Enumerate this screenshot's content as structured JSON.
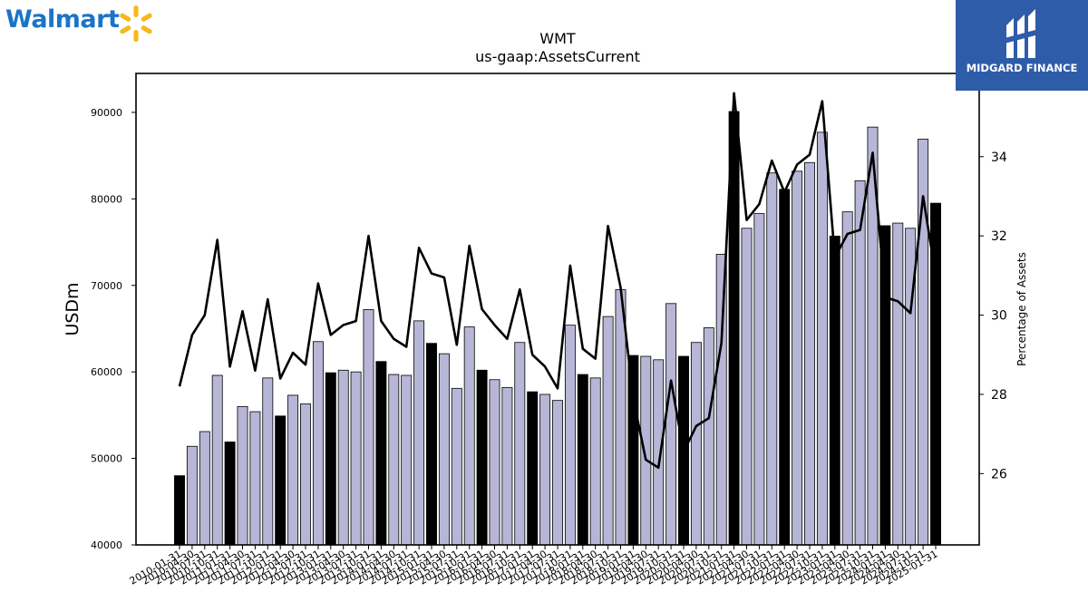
{
  "branding": {
    "left_logo_text": "Walmart",
    "right_logo_text": "MIDGARD FINANCE",
    "spark_icon": "spark-icon",
    "right_icon": "midgard-emblem-icon"
  },
  "chart_data": {
    "type": "bar",
    "title": "WMT",
    "subtitle": "us-gaap:AssetsCurrent",
    "ylabel": "USDm",
    "y2label": "Percentage of Assets",
    "ylim": [
      40000,
      94500
    ],
    "y2lim": [
      24.2,
      36.1
    ],
    "yticks": [
      40000,
      50000,
      60000,
      70000,
      80000,
      90000
    ],
    "y2ticks": [
      26,
      28,
      30,
      32,
      34
    ],
    "grid": false,
    "colors": {
      "annual_bar": "#000000",
      "quarter_bar": "#b8b6d6",
      "line": "#000000"
    },
    "categories": [
      "2010-01-31",
      "2010-04-30",
      "2010-07-31",
      "2010-10-31",
      "2011-01-31",
      "2011-04-30",
      "2011-07-31",
      "2011-10-31",
      "2012-01-31",
      "2012-04-30",
      "2012-07-31",
      "2012-10-31",
      "2013-01-31",
      "2013-04-30",
      "2013-07-31",
      "2013-10-31",
      "2014-01-31",
      "2014-04-30",
      "2014-07-31",
      "2014-10-31",
      "2015-01-31",
      "2015-04-30",
      "2015-07-31",
      "2015-10-31",
      "2016-01-31",
      "2016-04-30",
      "2016-07-31",
      "2016-10-31",
      "2017-01-31",
      "2017-04-30",
      "2017-07-31",
      "2017-10-31",
      "2018-01-31",
      "2018-04-30",
      "2018-07-31",
      "2018-10-31",
      "2019-01-31",
      "2019-04-30",
      "2019-07-31",
      "2019-10-31",
      "2020-01-31",
      "2020-04-30",
      "2020-07-31",
      "2020-10-31",
      "2021-01-31",
      "2021-04-30",
      "2021-07-31",
      "2021-10-31",
      "2022-01-31",
      "2022-04-30",
      "2022-07-31",
      "2022-10-31",
      "2023-01-31",
      "2023-04-30",
      "2023-07-31",
      "2023-10-31",
      "2024-01-31",
      "2024-04-30",
      "2024-07-31",
      "2024-10-31",
      "2025-01-31"
    ],
    "annual_flags": [
      1,
      0,
      0,
      0,
      1,
      0,
      0,
      0,
      1,
      0,
      0,
      0,
      1,
      0,
      0,
      0,
      1,
      0,
      0,
      0,
      1,
      0,
      0,
      0,
      1,
      0,
      0,
      0,
      1,
      0,
      0,
      0,
      1,
      0,
      0,
      0,
      1,
      0,
      0,
      0,
      1,
      0,
      0,
      0,
      1,
      0,
      0,
      0,
      1,
      0,
      0,
      0,
      1,
      0,
      0,
      0,
      1,
      0,
      0,
      0,
      1
    ],
    "series": [
      {
        "name": "AssetsCurrent",
        "axis": "left",
        "kind": "bar",
        "values": [
          48000,
          51400,
          53100,
          59600,
          51900,
          56000,
          55400,
          59300,
          54900,
          57300,
          56300,
          63500,
          59900,
          60200,
          60000,
          67200,
          61200,
          59700,
          59600,
          65900,
          63300,
          62100,
          58100,
          65200,
          60200,
          59100,
          58200,
          63400,
          57700,
          57400,
          56700,
          65400,
          59700,
          59300,
          66400,
          69500,
          61900,
          61800,
          61400,
          67900,
          61800,
          63400,
          65100,
          73600,
          90100,
          76600,
          78300,
          83000,
          81100,
          83200,
          84200,
          87700,
          75700,
          78500,
          82100,
          88300,
          76900,
          77200,
          76600,
          86900,
          79500
        ]
      },
      {
        "name": "Percentage of Assets",
        "axis": "right",
        "kind": "line",
        "values": [
          28.2,
          29.5,
          30.0,
          31.9,
          28.7,
          30.1,
          28.6,
          30.4,
          28.4,
          29.05,
          28.75,
          30.8,
          29.5,
          29.75,
          29.85,
          32.0,
          29.85,
          29.4,
          29.2,
          31.7,
          31.05,
          30.95,
          29.25,
          31.75,
          30.15,
          29.75,
          29.4,
          30.65,
          29.0,
          28.7,
          28.15,
          31.25,
          29.15,
          28.9,
          32.25,
          30.7,
          27.9,
          26.35,
          26.15,
          28.35,
          26.55,
          27.2,
          27.4,
          29.3,
          35.6,
          32.4,
          32.8,
          33.9,
          33.1,
          33.8,
          34.05,
          35.4,
          31.45,
          32.05,
          32.15,
          34.1,
          30.45,
          30.35,
          30.05,
          33.0,
          31.0
        ]
      }
    ]
  }
}
